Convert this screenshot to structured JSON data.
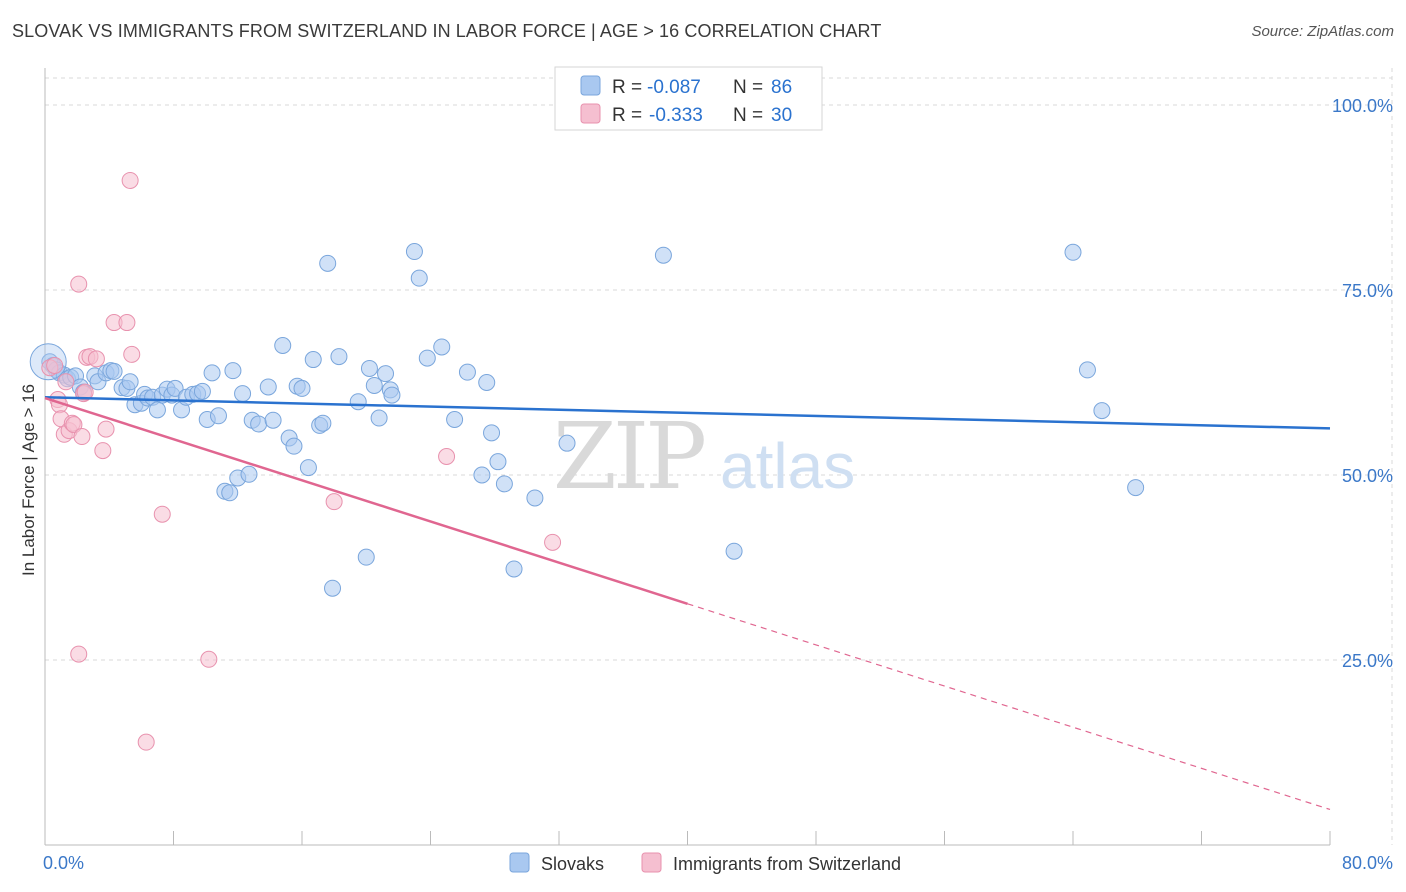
{
  "title": "SLOVAK VS IMMIGRANTS FROM SWITZERLAND IN LABOR FORCE | AGE > 16 CORRELATION CHART",
  "source": "Source: ZipAtlas.com",
  "watermark": {
    "zip": "ZIP",
    "atlas": "atlas"
  },
  "colors": {
    "blue_fill": "#a9c8f0",
    "blue_stroke": "#7aa6dc",
    "blue_line": "#2a72cf",
    "pink_fill": "#f5bfd0",
    "pink_stroke": "#e892ae",
    "pink_line": "#e06690",
    "tick_text": "#3b78c8",
    "grid": "#d8d8d8"
  },
  "legend": {
    "rows": [
      {
        "r_label": "R = ",
        "r_value": "-0.087",
        "n_label": "N = ",
        "n_value": "86"
      },
      {
        "r_label": "R = ",
        "r_value": "-0.333",
        "n_label": "N = ",
        "n_value": "30"
      }
    ]
  },
  "bottom_legend": [
    "Slovaks",
    "Immigrants from Switzerland"
  ],
  "chart_data": {
    "type": "scatter",
    "title": "SLOVAK VS IMMIGRANTS FROM SWITZERLAND IN LABOR FORCE | AGE > 16 CORRELATION CHART",
    "xlabel": "",
    "ylabel": "In Labor Force | Age > 16",
    "xlim": [
      0,
      80
    ],
    "ylim": [
      0,
      105
    ],
    "x_tick_labels": [
      "0.0%",
      "80.0%"
    ],
    "y_ticks": [
      25,
      50,
      75,
      100
    ],
    "y_tick_labels": [
      "25.0%",
      "50.0%",
      "75.0%",
      "100.0%"
    ],
    "grid": true,
    "legend_position": "top-center",
    "series": [
      {
        "name": "Slovaks",
        "color": "#a9c8f0",
        "r": -0.087,
        "n": 86,
        "trend": {
          "x": [
            0,
            80
          ],
          "y": [
            60.5,
            56.3
          ],
          "dashed_from": null
        },
        "points": [
          [
            0.3,
            65.3
          ],
          [
            0.5,
            64.8
          ],
          [
            0.7,
            64.2
          ],
          [
            0.9,
            63.8
          ],
          [
            1.2,
            63.5
          ],
          [
            1.4,
            63.0
          ],
          [
            1.6,
            63.2
          ],
          [
            1.9,
            63.4
          ],
          [
            2.2,
            61.9
          ],
          [
            2.4,
            61.2
          ],
          [
            3.1,
            63.4
          ],
          [
            3.3,
            62.6
          ],
          [
            3.8,
            63.8
          ],
          [
            4.1,
            64.1
          ],
          [
            4.3,
            64.0
          ],
          [
            4.8,
            61.8
          ],
          [
            5.1,
            61.7
          ],
          [
            5.3,
            62.6
          ],
          [
            5.6,
            59.5
          ],
          [
            6.0,
            59.7
          ],
          [
            6.2,
            60.9
          ],
          [
            6.4,
            60.4
          ],
          [
            6.7,
            60.5
          ],
          [
            7.0,
            58.8
          ],
          [
            7.3,
            60.8
          ],
          [
            7.6,
            61.6
          ],
          [
            7.9,
            60.8
          ],
          [
            8.1,
            61.7
          ],
          [
            8.5,
            58.8
          ],
          [
            8.8,
            60.5
          ],
          [
            9.2,
            60.9
          ],
          [
            9.5,
            61.0
          ],
          [
            9.8,
            61.3
          ],
          [
            10.1,
            57.5
          ],
          [
            10.4,
            63.8
          ],
          [
            10.8,
            58.0
          ],
          [
            11.2,
            47.8
          ],
          [
            11.5,
            47.6
          ],
          [
            11.7,
            64.1
          ],
          [
            12.0,
            49.6
          ],
          [
            12.3,
            61.0
          ],
          [
            12.7,
            50.1
          ],
          [
            12.9,
            57.4
          ],
          [
            13.3,
            56.9
          ],
          [
            13.9,
            61.9
          ],
          [
            14.2,
            57.4
          ],
          [
            14.8,
            67.5
          ],
          [
            15.2,
            55.0
          ],
          [
            15.5,
            53.9
          ],
          [
            15.7,
            62.0
          ],
          [
            16.0,
            61.7
          ],
          [
            16.4,
            51.0
          ],
          [
            16.7,
            65.6
          ],
          [
            17.1,
            56.7
          ],
          [
            17.3,
            57.0
          ],
          [
            17.6,
            78.6
          ],
          [
            17.9,
            34.7
          ],
          [
            18.3,
            66.0
          ],
          [
            19.5,
            59.9
          ],
          [
            20.0,
            38.9
          ],
          [
            20.2,
            64.4
          ],
          [
            20.5,
            62.1
          ],
          [
            20.8,
            57.7
          ],
          [
            21.2,
            63.7
          ],
          [
            21.5,
            61.5
          ],
          [
            21.6,
            60.8
          ],
          [
            23.0,
            80.2
          ],
          [
            23.3,
            76.6
          ],
          [
            23.8,
            65.8
          ],
          [
            24.7,
            67.3
          ],
          [
            25.5,
            57.5
          ],
          [
            26.3,
            63.9
          ],
          [
            27.2,
            50.0
          ],
          [
            27.5,
            62.5
          ],
          [
            27.8,
            55.7
          ],
          [
            28.2,
            51.8
          ],
          [
            28.6,
            48.8
          ],
          [
            29.2,
            37.3
          ],
          [
            30.5,
            46.9
          ],
          [
            32.5,
            54.3
          ],
          [
            38.5,
            79.7
          ],
          [
            42.9,
            39.7
          ],
          [
            64.0,
            80.1
          ],
          [
            64.9,
            64.2
          ],
          [
            65.8,
            58.7
          ],
          [
            67.9,
            48.3
          ]
        ]
      },
      {
        "name": "Immigrants from Switzerland",
        "color": "#f5bfd0",
        "r": -0.333,
        "n": 30,
        "trend": {
          "x": [
            0,
            80
          ],
          "y": [
            60.4,
            4.8
          ],
          "dashed_from": 40
        },
        "points": [
          [
            0.3,
            64.5
          ],
          [
            0.6,
            64.8
          ],
          [
            0.8,
            60.2
          ],
          [
            0.9,
            59.5
          ],
          [
            1.0,
            57.6
          ],
          [
            1.2,
            55.5
          ],
          [
            1.3,
            62.6
          ],
          [
            1.5,
            56.0
          ],
          [
            1.7,
            57.0
          ],
          [
            1.8,
            56.8
          ],
          [
            2.1,
            75.8
          ],
          [
            2.3,
            55.2
          ],
          [
            2.4,
            61.0
          ],
          [
            2.6,
            65.9
          ],
          [
            2.8,
            66.0
          ],
          [
            3.2,
            65.7
          ],
          [
            3.6,
            53.3
          ],
          [
            3.8,
            56.2
          ],
          [
            4.3,
            70.6
          ],
          [
            5.1,
            70.6
          ],
          [
            5.3,
            89.8
          ],
          [
            5.4,
            66.3
          ],
          [
            7.3,
            44.7
          ],
          [
            10.2,
            25.1
          ],
          [
            2.1,
            25.8
          ],
          [
            6.3,
            13.9
          ],
          [
            18.0,
            46.4
          ],
          [
            25.0,
            52.5
          ],
          [
            31.6,
            40.9
          ],
          [
            2.5,
            61.2
          ]
        ]
      }
    ]
  }
}
